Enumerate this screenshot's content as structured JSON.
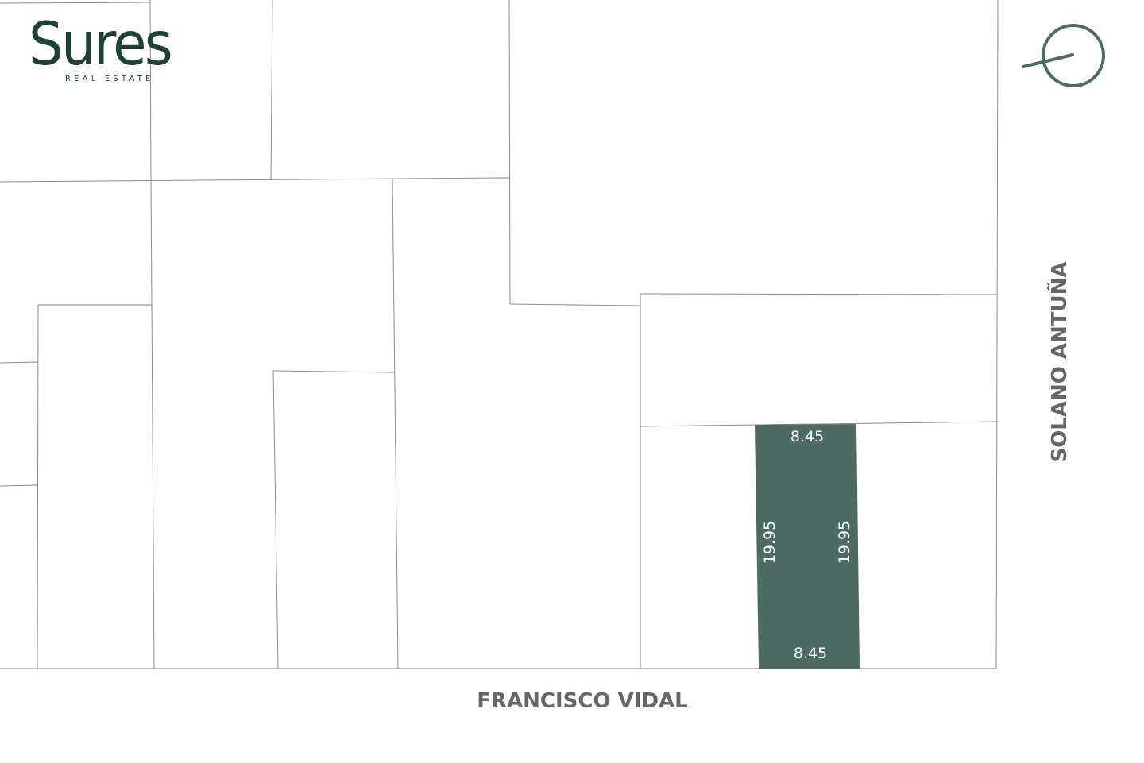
{
  "brand": {
    "name": "Sures",
    "subtitle": "REAL ESTATE",
    "color": "#1f4235"
  },
  "compass": {
    "icon": "north-arrow-icon",
    "color": "#4e6b63"
  },
  "streets": {
    "bottom": "FRANCISCO VIDAL",
    "right": "SOLANO ANTUÑA"
  },
  "lot": {
    "fill": "#4e6b63",
    "dimensions": {
      "top": "8.45",
      "bottom": "8.45",
      "left": "19.95",
      "right": "19.95"
    }
  },
  "colors": {
    "line": "#8a8a8a",
    "street_text": "#666666",
    "lot_text": "#ffffff"
  }
}
